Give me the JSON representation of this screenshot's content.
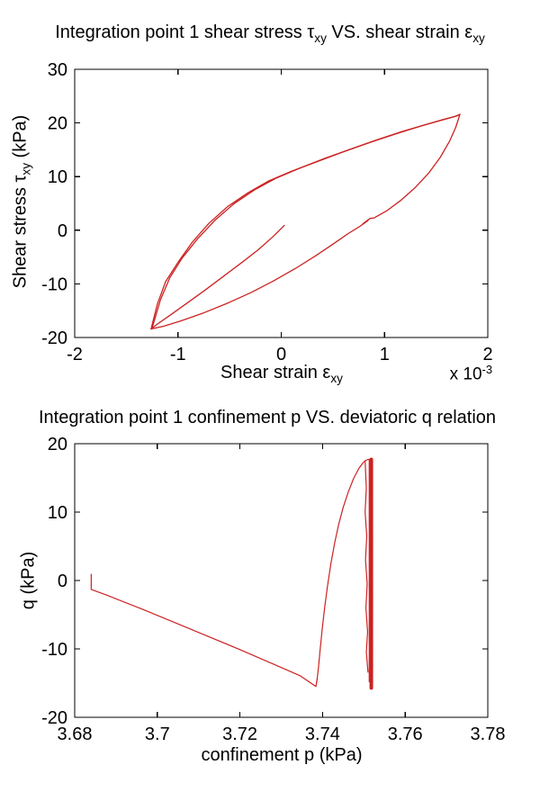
{
  "figure": {
    "background": "#ffffff",
    "axis_color": "#000000",
    "series_color": "#cc2222"
  },
  "chart_data": [
    {
      "id": "shear",
      "type": "line",
      "title_parts": [
        {
          "t": "Integration point 1 shear stress τ"
        },
        {
          "t": "xy",
          "s": "sub"
        },
        {
          "t": " VS. shear strain ε"
        },
        {
          "t": "xy",
          "s": "sub"
        }
      ],
      "xlabel_parts": [
        {
          "t": "Shear strain ε"
        },
        {
          "t": "xy",
          "s": "sub"
        }
      ],
      "ylabel_parts": [
        {
          "t": "Shear stress τ"
        },
        {
          "t": "xy",
          "s": "sub"
        },
        {
          "t": " (kPa)"
        }
      ],
      "x_offset_parts": [
        {
          "t": "x 10"
        },
        {
          "t": "-3",
          "s": "sup"
        }
      ],
      "x_unit_scale": "1e-3",
      "xlim": [
        -2,
        2
      ],
      "ylim": [
        -20,
        30
      ],
      "grid": false,
      "xticks": [
        {
          "v": -2,
          "label": "-2"
        },
        {
          "v": -1,
          "label": "-1"
        },
        {
          "v": 0,
          "label": "0"
        },
        {
          "v": 1,
          "label": "1"
        },
        {
          "v": 2,
          "label": "2"
        }
      ],
      "yticks": [
        {
          "v": 30,
          "label": "30"
        },
        {
          "v": 20,
          "label": "20"
        },
        {
          "v": 10,
          "label": "10"
        },
        {
          "v": 0,
          "label": "0"
        },
        {
          "v": -10,
          "label": "-10"
        },
        {
          "v": -20,
          "label": "-20"
        }
      ],
      "series": [
        {
          "name": "initial-loading",
          "width": 1.3,
          "points": [
            [
              0.03,
              0.9
            ],
            [
              -0.08,
              -1.2
            ],
            [
              -0.22,
              -3.6
            ],
            [
              -0.38,
              -6.0
            ],
            [
              -0.56,
              -8.6
            ],
            [
              -0.74,
              -11.2
            ],
            [
              -0.92,
              -13.7
            ],
            [
              -1.08,
              -15.9
            ],
            [
              -1.2,
              -17.5
            ],
            [
              -1.26,
              -18.4
            ]
          ]
        },
        {
          "name": "cycle-upper-1",
          "width": 1.3,
          "points": [
            [
              -1.26,
              -18.4
            ],
            [
              -1.2,
              -13.8
            ],
            [
              -1.12,
              -9.6
            ],
            [
              -1.0,
              -6.0
            ],
            [
              -0.86,
              -2.2
            ],
            [
              -0.7,
              1.3
            ],
            [
              -0.52,
              4.4
            ],
            [
              -0.32,
              7.0
            ],
            [
              -0.12,
              9.2
            ],
            [
              0.1,
              11.0
            ],
            [
              0.35,
              12.8
            ],
            [
              0.6,
              14.6
            ],
            [
              0.85,
              16.3
            ],
            [
              1.1,
              17.9
            ],
            [
              1.35,
              19.4
            ],
            [
              1.55,
              20.5
            ],
            [
              1.68,
              21.2
            ],
            [
              1.73,
              21.6
            ]
          ]
        },
        {
          "name": "cycle-upper-2",
          "width": 1.3,
          "points": [
            [
              -1.25,
              -18.2
            ],
            [
              -1.17,
              -13.0
            ],
            [
              -1.08,
              -8.9
            ],
            [
              -0.96,
              -5.2
            ],
            [
              -0.81,
              -1.6
            ],
            [
              -0.64,
              1.9
            ],
            [
              -0.46,
              4.9
            ],
            [
              -0.26,
              7.5
            ],
            [
              -0.05,
              9.7
            ],
            [
              0.17,
              11.5
            ],
            [
              0.42,
              13.4
            ],
            [
              0.67,
              15.1
            ],
            [
              0.92,
              16.8
            ],
            [
              1.17,
              18.4
            ],
            [
              1.4,
              19.7
            ],
            [
              1.58,
              20.7
            ],
            [
              1.7,
              21.3
            ],
            [
              1.73,
              21.6
            ]
          ]
        },
        {
          "name": "cycle-lower",
          "width": 1.3,
          "points": [
            [
              1.73,
              21.6
            ],
            [
              1.69,
              19.2
            ],
            [
              1.63,
              16.6
            ],
            [
              1.54,
              13.6
            ],
            [
              1.43,
              10.7
            ],
            [
              1.3,
              8.0
            ],
            [
              1.16,
              5.6
            ],
            [
              1.02,
              3.6
            ],
            [
              0.9,
              2.3
            ],
            [
              0.86,
              2.2
            ],
            [
              0.79,
              1.2
            ],
            [
              0.84,
              1.8
            ],
            [
              0.76,
              0.7
            ],
            [
              0.65,
              -0.6
            ],
            [
              0.5,
              -2.6
            ],
            [
              0.33,
              -4.8
            ],
            [
              0.14,
              -7.1
            ],
            [
              -0.07,
              -9.4
            ],
            [
              -0.29,
              -11.6
            ],
            [
              -0.52,
              -13.6
            ],
            [
              -0.75,
              -15.4
            ],
            [
              -0.97,
              -16.9
            ],
            [
              -1.14,
              -17.9
            ],
            [
              -1.26,
              -18.4
            ]
          ]
        }
      ]
    },
    {
      "id": "pq",
      "type": "line",
      "title_parts": [
        {
          "t": "Integration point 1 confinement p VS. deviatoric q relation"
        }
      ],
      "xlabel_parts": [
        {
          "t": "confinement p (kPa)"
        }
      ],
      "ylabel_parts": [
        {
          "t": "q (kPa)"
        }
      ],
      "x_offset_parts": [],
      "xlim": [
        3.68,
        3.78
      ],
      "ylim": [
        -20,
        20
      ],
      "grid": false,
      "xticks": [
        {
          "v": 3.68,
          "label": "3.68"
        },
        {
          "v": 3.7,
          "label": "3.7"
        },
        {
          "v": 3.72,
          "label": "3.72"
        },
        {
          "v": 3.74,
          "label": "3.74"
        },
        {
          "v": 3.76,
          "label": "3.76"
        },
        {
          "v": 3.78,
          "label": "3.78"
        }
      ],
      "yticks": [
        {
          "v": 20,
          "label": "20"
        },
        {
          "v": 10,
          "label": "10"
        },
        {
          "v": 0,
          "label": "0"
        },
        {
          "v": -10,
          "label": "-10"
        },
        {
          "v": -20,
          "label": "-20"
        }
      ],
      "series": [
        {
          "name": "pq-path",
          "width": 1.2,
          "points": [
            [
              3.684,
              0.9
            ],
            [
              3.684,
              -1.3
            ],
            [
              3.688,
              -2.2
            ],
            [
              3.696,
              -4.1
            ],
            [
              3.704,
              -6.1
            ],
            [
              3.712,
              -8.1
            ],
            [
              3.72,
              -10.1
            ],
            [
              3.728,
              -12.2
            ],
            [
              3.7345,
              -13.9
            ],
            [
              3.7384,
              -15.5
            ],
            [
              3.7387,
              -14.3
            ],
            [
              3.7386,
              -14.9
            ],
            [
              3.739,
              -12.8
            ],
            [
              3.7394,
              -10.2
            ],
            [
              3.7399,
              -7.2
            ],
            [
              3.7405,
              -4.0
            ],
            [
              3.7412,
              -0.8
            ],
            [
              3.742,
              2.4
            ],
            [
              3.7429,
              5.4
            ],
            [
              3.7439,
              8.2
            ],
            [
              3.745,
              10.7
            ],
            [
              3.7462,
              12.9
            ],
            [
              3.7475,
              14.9
            ],
            [
              3.7488,
              16.4
            ],
            [
              3.7498,
              17.2
            ],
            [
              3.7503,
              17.5
            ]
          ]
        },
        {
          "name": "pq-jagged-descent",
          "width": 1.2,
          "points": [
            [
              3.7503,
              17.5
            ],
            [
              3.7506,
              13.5
            ],
            [
              3.7503,
              10.0
            ],
            [
              3.7507,
              6.5
            ],
            [
              3.7504,
              3.0
            ],
            [
              3.7508,
              -0.5
            ],
            [
              3.7505,
              -4.0
            ],
            [
              3.7509,
              -7.5
            ],
            [
              3.7506,
              -10.5
            ],
            [
              3.751,
              -13.4
            ]
          ]
        },
        {
          "name": "pq-thin-vertical",
          "width": 1.2,
          "points": [
            [
              3.7513,
              17.6
            ],
            [
              3.7513,
              -14.8
            ]
          ]
        },
        {
          "name": "pq-top-hook",
          "width": 1.2,
          "points": [
            [
              3.7503,
              17.5
            ],
            [
              3.751,
              17.7
            ],
            [
              3.7518,
              17.7
            ]
          ]
        },
        {
          "name": "pq-cyclic-band",
          "width": 4,
          "points": [
            [
              3.7518,
              17.7
            ],
            [
              3.7518,
              -15.7
            ]
          ]
        }
      ]
    }
  ]
}
